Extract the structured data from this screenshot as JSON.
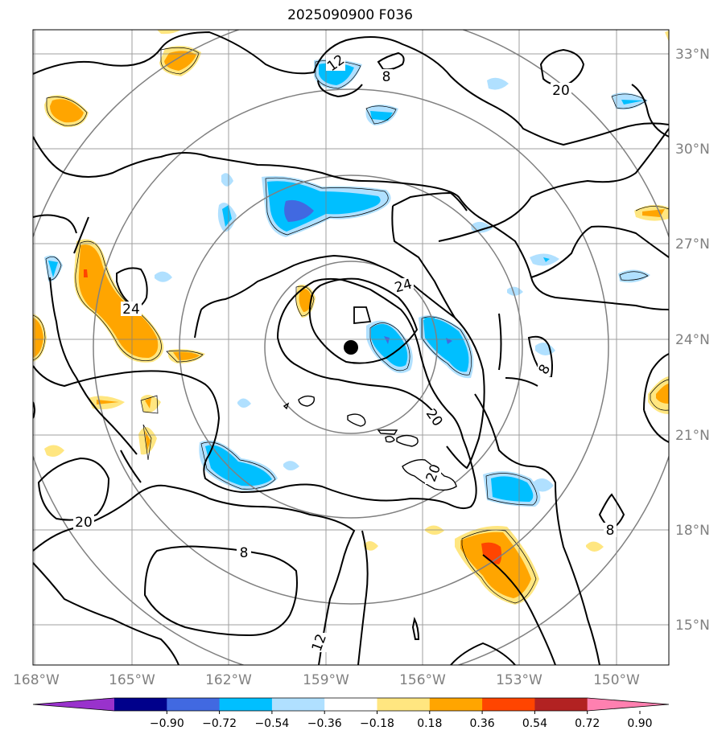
{
  "title": "2025090900 F036",
  "map": {
    "lon_labels": [
      "168°W",
      "165°W",
      "162°W",
      "159°W",
      "156°W",
      "153°W",
      "150°W"
    ],
    "lat_labels": [
      "33°N",
      "30°N",
      "27°N",
      "24°N",
      "21°N",
      "18°N",
      "15°N"
    ],
    "contour_labels": [
      "12",
      "8",
      "20",
      "24",
      "24",
      "8",
      "20",
      "20",
      "20",
      "8",
      "8",
      "12"
    ],
    "center_marker": "storm-center-dot",
    "range_rings": 4
  },
  "colorbar": {
    "ticks": [
      "−0.90",
      "−0.72",
      "−0.54",
      "−0.36",
      "−0.18",
      "0.18",
      "0.36",
      "0.54",
      "0.72",
      "0.90"
    ],
    "colors": [
      "#9932cc",
      "#00008b",
      "#4169e1",
      "#00bfff",
      "#b0e0ff",
      "#ffffff",
      "#ffe680",
      "#ffa500",
      "#ff4500",
      "#b22222",
      "#ff80b0"
    ]
  },
  "colors": {
    "grid": "#808080",
    "contour": "#000000",
    "neg_strong": "#4169e1",
    "neg_mid": "#00bfff",
    "neg_weak": "#b0e0ff",
    "pos_weak": "#ffe680",
    "pos_mid": "#ffa500",
    "pos_strong": "#ff4500"
  }
}
